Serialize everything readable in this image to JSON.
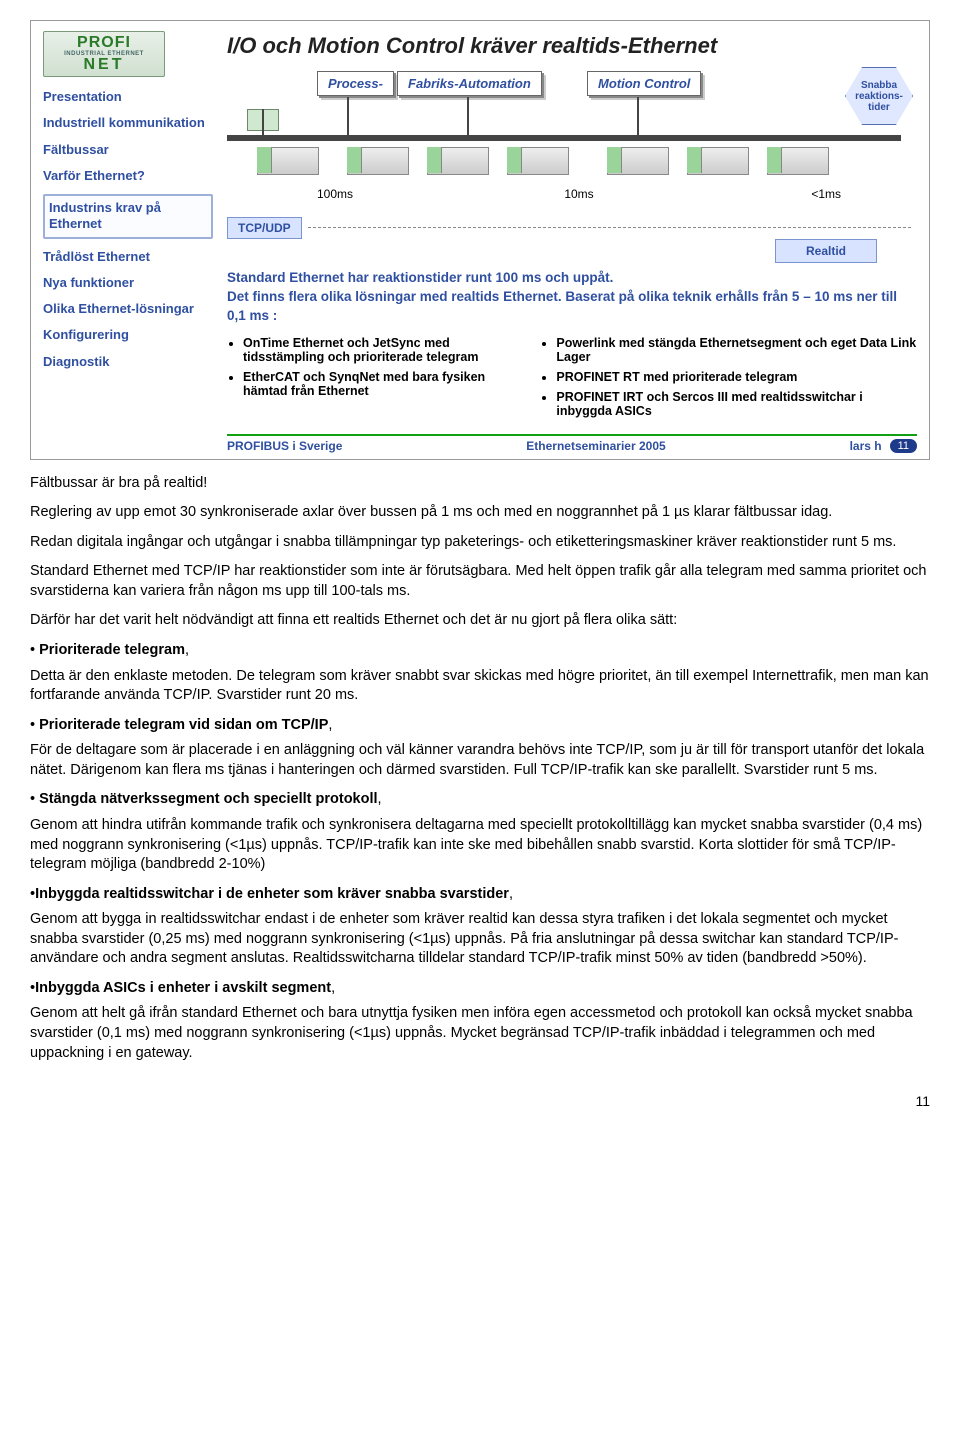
{
  "logo": {
    "line1": "PROFI",
    "line2": "INDUSTRIAL ETHERNET",
    "line3": "NET"
  },
  "nav": [
    {
      "label": "Presentation",
      "boxed": false
    },
    {
      "label": "Industriell kommunikation",
      "boxed": false
    },
    {
      "label": "Fältbussar",
      "boxed": false
    },
    {
      "label": "Varför Ethernet?",
      "boxed": false
    },
    {
      "label": "Industrins krav på Ethernet",
      "boxed": true
    },
    {
      "label": "Trådlöst Ethernet",
      "boxed": false
    },
    {
      "label": "Nya funktioner",
      "boxed": false
    },
    {
      "label": "Olika Ethernet-lösningar",
      "boxed": false
    },
    {
      "label": "Konfigurering",
      "boxed": false
    },
    {
      "label": "Diagnostik",
      "boxed": false
    }
  ],
  "slide": {
    "title": "I/O och Motion Control kräver realtids-Ethernet",
    "hex": "Snabba reaktions-tider",
    "box1": "Process-",
    "box2": "Fabriks-Automation",
    "box3": "Motion Control",
    "tcpudp": "TCP/UDP",
    "t100": "100ms",
    "t10": "10ms",
    "t1": "<1ms",
    "realtid": "Realtid",
    "blue1": "Standard Ethernet har reaktionstider runt 100 ms och uppåt.",
    "blue2": "Det finns flera olika lösningar med realtids Ethernet. Baserat på olika teknik erhålls från 5 – 10 ms ner till 0,1 ms :",
    "left_bullets": [
      "OnTime Ethernet och JetSync med tidsstämpling och prioriterade telegram",
      "EtherCAT och SynqNet med bara fysiken hämtad från Ethernet"
    ],
    "right_bullets": [
      "Powerlink med stängda Ethernetsegment och eget Data Link Lager",
      "PROFINET RT med prioriterade telegram",
      "PROFINET IRT och Sercos III med realtidsswitchar i inbyggda ASICs"
    ],
    "footer_left": "PROFIBUS i Sverige",
    "footer_center": "Ethernetseminarier 2005",
    "footer_right": "lars h",
    "slide_num": "11"
  },
  "body": {
    "p1": "Fältbussar är bra på realtid!",
    "p2": "Reglering av upp emot 30 synkroniserade axlar över bussen på 1 ms och med en noggrannhet på 1 µs klarar fältbussar idag.",
    "p3": "Redan digitala ingångar och utgångar i snabba tillämpningar typ paketerings- och etiketteringsmaskiner kräver reaktionstider runt 5 ms.",
    "p4": "Standard Ethernet med TCP/IP har reaktionstider som inte är förutsägbara. Med helt öppen trafik går alla telegram med samma prioritet och svarstiderna kan variera från någon ms upp till 100-tals ms.",
    "p5": "Därför har det varit helt nödvändigt att finna ett realtids Ethernet och det är nu gjort på flera olika sätt:",
    "b1_head": "Prioriterade telegram",
    "b1_body": "Detta är den enklaste metoden. De telegram som kräver snabbt svar skickas med högre prioritet, än till exempel Internettrafik, men man kan fortfarande använda TCP/IP. Svarstider runt 20 ms.",
    "b2_head": "Prioriterade telegram vid sidan om TCP/IP",
    "b2_body": "För de deltagare som är placerade i en anläggning och väl känner varandra behövs inte TCP/IP, som ju är till för transport utanför det lokala nätet. Därigenom kan flera ms tjänas i hanteringen och därmed svarstiden. Full TCP/IP-trafik kan ske parallellt. Svarstider runt 5 ms.",
    "b3_head": "Stängda nätverkssegment och speciellt protokoll",
    "b3_body": "Genom att hindra utifrån kommande trafik och synkronisera deltagarna med speciellt protokolltillägg kan mycket snabba svarstider (0,4 ms) med noggrann synkronisering (<1µs) uppnås.   TCP/IP-trafik kan inte ske med bibehållen snabb svarstid. Korta slottider för små TCP/IP-telegram möjliga (bandbredd 2-10%)",
    "b4_head": "Inbyggda realtidsswitchar i de enheter som kräver snabba svarstider",
    "b4_body": "Genom att bygga in realtidsswitchar endast i de enheter som kräver realtid kan dessa styra trafiken i det lokala segmentet och mycket snabba svarstider (0,25 ms) med noggrann synkronisering (<1µs) uppnås. På fria anslutningar på dessa switchar kan standard TCP/IP-användare och andra segment anslutas. Realtidsswitcharna tilldelar standard TCP/IP-trafik minst 50% av tiden (bandbredd >50%).",
    "b5_head": "Inbyggda ASICs i enheter i avskilt segment",
    "b5_body": "Genom att helt gå ifrån standard Ethernet och bara utnyttja fysiken men införa egen accessmetod och protokoll kan också mycket snabba svarstider (0,1 ms) med noggrann synkronisering (<1µs) uppnås. Mycket begränsad TCP/IP-trafik inbäddad i telegrammen och med uppackning i en gateway."
  },
  "page_number": "11"
}
